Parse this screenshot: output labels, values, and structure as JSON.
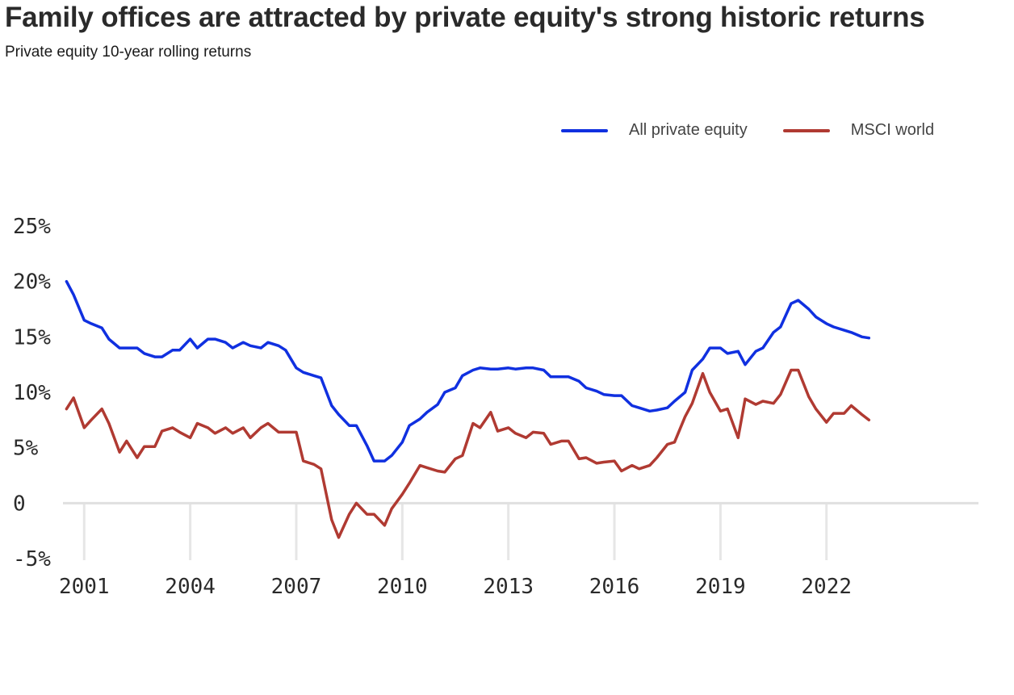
{
  "header": {
    "title": "Family offices are attracted by private equity's strong historic returns",
    "subtitle": "Private equity 10-year rolling returns"
  },
  "colors": {
    "private_equity": "#1030e0",
    "msci_world": "#b03a32",
    "grid": "#e6e6e6",
    "zero_line": "#e0e0e0"
  },
  "legend": [
    {
      "label": "All private equity",
      "color": "#1030e0"
    },
    {
      "label": "MSCI world",
      "color": "#b03a32"
    }
  ],
  "chart_data": {
    "type": "line",
    "title": "Family offices are attracted by private equity's strong historic returns",
    "subtitle": "Private equity 10-year rolling returns",
    "xlabel": "",
    "ylabel": "",
    "xlim": [
      2000.4,
      2026.3
    ],
    "ylim": [
      -5,
      25
    ],
    "y_ticks": [
      {
        "value": 25,
        "label": "25%"
      },
      {
        "value": 20,
        "label": "20%"
      },
      {
        "value": 15,
        "label": "15%"
      },
      {
        "value": 10,
        "label": "10%"
      },
      {
        "value": 5,
        "label": "5%"
      },
      {
        "value": 0,
        "label": "0"
      },
      {
        "value": -5,
        "label": "-5%"
      }
    ],
    "x_ticks": [
      {
        "value": 2001,
        "label": "2001"
      },
      {
        "value": 2004,
        "label": "2004"
      },
      {
        "value": 2007,
        "label": "2007"
      },
      {
        "value": 2010,
        "label": "2010"
      },
      {
        "value": 2013,
        "label": "2013"
      },
      {
        "value": 2016,
        "label": "2016"
      },
      {
        "value": 2019,
        "label": "2019"
      },
      {
        "value": 2022,
        "label": "2022"
      }
    ],
    "legend_position": "top-right",
    "series": [
      {
        "name": "All private equity",
        "color": "#1030e0",
        "x": [
          2000.5,
          2000.7,
          2001.0,
          2001.2,
          2001.5,
          2001.7,
          2002.0,
          2002.2,
          2002.5,
          2002.7,
          2003.0,
          2003.2,
          2003.5,
          2003.7,
          2004.0,
          2004.2,
          2004.5,
          2004.7,
          2005.0,
          2005.2,
          2005.5,
          2005.7,
          2006.0,
          2006.2,
          2006.5,
          2006.7,
          2007.0,
          2007.2,
          2007.5,
          2007.7,
          2008.0,
          2008.2,
          2008.5,
          2008.7,
          2009.0,
          2009.2,
          2009.5,
          2009.7,
          2010.0,
          2010.2,
          2010.5,
          2010.7,
          2011.0,
          2011.2,
          2011.5,
          2011.7,
          2012.0,
          2012.2,
          2012.5,
          2012.7,
          2013.0,
          2013.2,
          2013.5,
          2013.7,
          2014.0,
          2014.2,
          2014.5,
          2014.7,
          2015.0,
          2015.2,
          2015.5,
          2015.7,
          2016.0,
          2016.2,
          2016.5,
          2016.7,
          2017.0,
          2017.2,
          2017.5,
          2017.7,
          2018.0,
          2018.2,
          2018.5,
          2018.7,
          2019.0,
          2019.2,
          2019.5,
          2019.7,
          2020.0,
          2020.2,
          2020.5,
          2020.7,
          2021.0,
          2021.2,
          2021.5,
          2021.7,
          2022.0,
          2022.2,
          2022.5,
          2022.7,
          2023.0,
          2023.2
        ],
        "y": [
          20.0,
          18.8,
          16.5,
          16.2,
          15.8,
          14.8,
          14.0,
          14.0,
          14.0,
          13.5,
          13.2,
          13.2,
          13.8,
          13.8,
          14.8,
          14.0,
          14.8,
          14.8,
          14.5,
          14.0,
          14.5,
          14.2,
          14.0,
          14.5,
          14.2,
          13.8,
          12.2,
          11.8,
          11.5,
          11.3,
          8.8,
          8.0,
          7.0,
          7.0,
          5.2,
          3.8,
          3.8,
          4.3,
          5.5,
          7.0,
          7.6,
          8.2,
          8.9,
          10.0,
          10.4,
          11.5,
          12.0,
          12.2,
          12.1,
          12.1,
          12.2,
          12.1,
          12.2,
          12.2,
          12.0,
          11.4,
          11.4,
          11.4,
          11.0,
          10.4,
          10.1,
          9.8,
          9.7,
          9.7,
          8.8,
          8.6,
          8.3,
          8.4,
          8.6,
          9.2,
          10.0,
          12.0,
          13.0,
          14.0,
          14.0,
          13.5,
          13.7,
          12.5,
          13.7,
          14.0,
          15.4,
          15.9,
          18.0,
          18.3,
          17.5,
          16.8,
          16.2,
          15.9,
          15.6,
          15.4,
          15.0,
          14.9
        ]
      },
      {
        "name": "MSCI world",
        "color": "#b03a32",
        "x": [
          2000.5,
          2000.7,
          2001.0,
          2001.2,
          2001.5,
          2001.7,
          2002.0,
          2002.2,
          2002.5,
          2002.7,
          2003.0,
          2003.2,
          2003.5,
          2003.7,
          2004.0,
          2004.2,
          2004.5,
          2004.7,
          2005.0,
          2005.2,
          2005.5,
          2005.7,
          2006.0,
          2006.2,
          2006.5,
          2006.7,
          2007.0,
          2007.2,
          2007.5,
          2007.7,
          2008.0,
          2008.2,
          2008.5,
          2008.7,
          2009.0,
          2009.2,
          2009.5,
          2009.7,
          2010.0,
          2010.2,
          2010.5,
          2010.7,
          2011.0,
          2011.2,
          2011.5,
          2011.7,
          2012.0,
          2012.2,
          2012.5,
          2012.7,
          2013.0,
          2013.2,
          2013.5,
          2013.7,
          2014.0,
          2014.2,
          2014.5,
          2014.7,
          2015.0,
          2015.2,
          2015.5,
          2015.7,
          2016.0,
          2016.2,
          2016.5,
          2016.7,
          2017.0,
          2017.2,
          2017.5,
          2017.7,
          2018.0,
          2018.2,
          2018.5,
          2018.7,
          2019.0,
          2019.2,
          2019.5,
          2019.7,
          2020.0,
          2020.2,
          2020.5,
          2020.7,
          2021.0,
          2021.2,
          2021.5,
          2021.7,
          2022.0,
          2022.2,
          2022.5,
          2022.7,
          2023.0,
          2023.2
        ],
        "y": [
          8.5,
          9.5,
          6.8,
          7.5,
          8.5,
          7.2,
          4.6,
          5.6,
          4.1,
          5.1,
          5.1,
          6.5,
          6.8,
          6.4,
          5.9,
          7.2,
          6.8,
          6.3,
          6.8,
          6.3,
          6.8,
          5.9,
          6.8,
          7.2,
          6.4,
          6.4,
          6.4,
          3.8,
          3.5,
          3.1,
          -1.5,
          -3.1,
          -1.0,
          0.0,
          -1.0,
          -1.0,
          -2.0,
          -0.5,
          0.8,
          1.8,
          3.4,
          3.2,
          2.9,
          2.8,
          4.0,
          4.3,
          7.2,
          6.8,
          8.2,
          6.5,
          6.8,
          6.3,
          5.9,
          6.4,
          6.3,
          5.3,
          5.6,
          5.6,
          4.0,
          4.1,
          3.6,
          3.7,
          3.8,
          2.9,
          3.4,
          3.1,
          3.4,
          4.1,
          5.3,
          5.5,
          7.8,
          9.0,
          11.7,
          10.0,
          8.3,
          8.5,
          5.9,
          9.4,
          8.9,
          9.2,
          9.0,
          9.8,
          12.0,
          12.0,
          9.6,
          8.5,
          7.3,
          8.1,
          8.1,
          8.8,
          8.0,
          7.5
        ]
      }
    ]
  }
}
